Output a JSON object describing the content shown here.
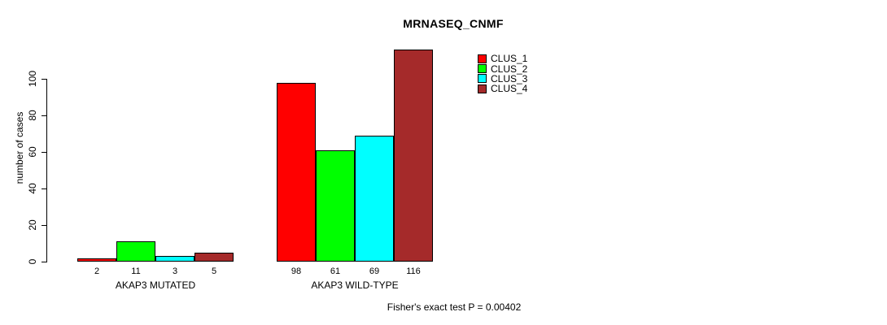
{
  "chart_data": {
    "type": "bar",
    "title": "MRNASEQ_CNMF",
    "ylabel": "number of cases",
    "xlabel": "",
    "yticks": [
      0,
      20,
      40,
      60,
      80,
      100
    ],
    "ylim": [
      0,
      116
    ],
    "grid": false,
    "legend_position": "top-right-inside",
    "bar_value_labels_shown": true,
    "categories": [
      "AKAP3 MUTATED",
      "AKAP3 WILD-TYPE"
    ],
    "groups": [
      {
        "label": "AKAP3 MUTATED",
        "values": [
          2,
          11,
          3,
          5
        ]
      },
      {
        "label": "AKAP3 WILD-TYPE",
        "values": [
          98,
          61,
          69,
          116
        ]
      }
    ],
    "series": [
      {
        "name": "CLUS_1",
        "color": "#FF0000"
      },
      {
        "name": "CLUS_2",
        "color": "#00FF00"
      },
      {
        "name": "CLUS_3",
        "color": "#00FFFF"
      },
      {
        "name": "CLUS_4",
        "color": "#A52A2A"
      }
    ],
    "footnote": "Fisher's exact test P = 0.00402",
    "colors": {
      "background": "#FFFFFF",
      "axis": "#000000",
      "text": "#000000",
      "bar_border": "#000000"
    }
  }
}
